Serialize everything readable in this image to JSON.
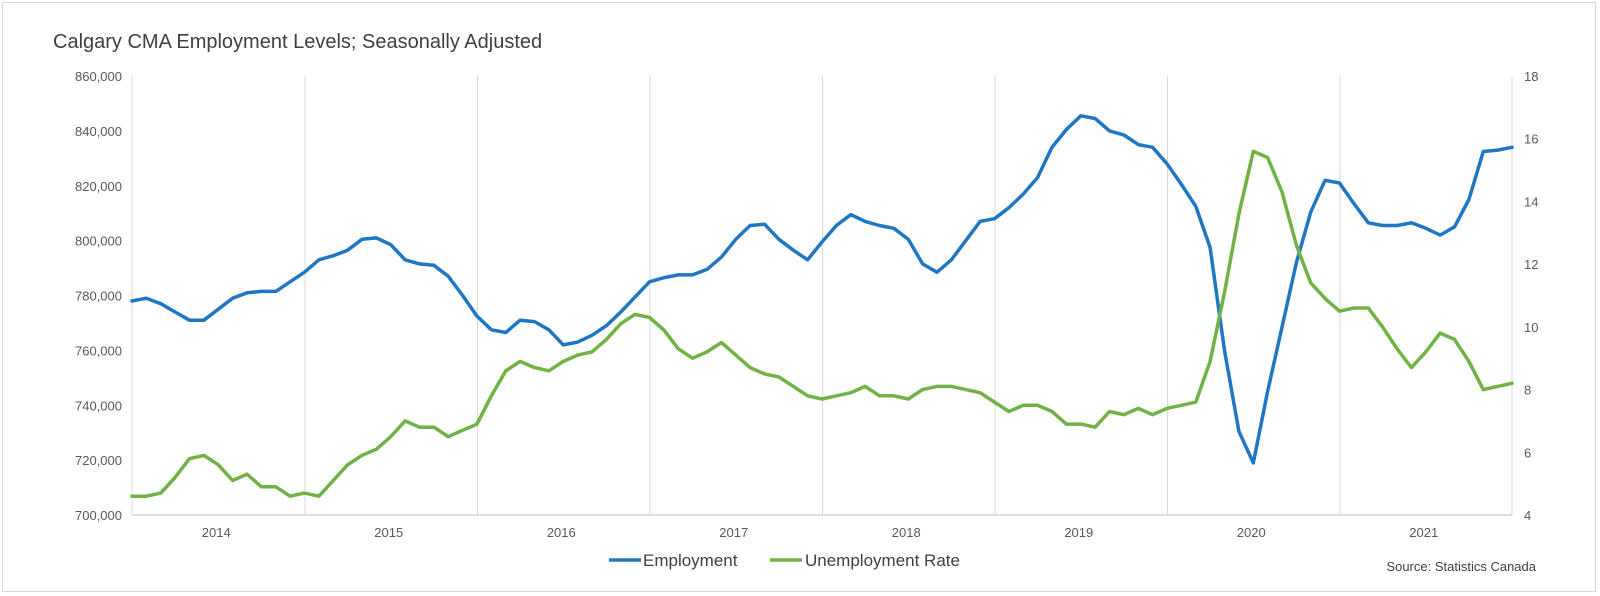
{
  "chart_data": {
    "type": "line",
    "title": "Calgary CMA Employment Levels; Seasonally Adjusted",
    "source": "Source: Statistics Canada",
    "x_labels": [
      "2014",
      "2015",
      "2016",
      "2017",
      "2018",
      "2019",
      "2020",
      "2021"
    ],
    "y_left": {
      "lim": [
        700000,
        860000
      ],
      "ticks": [
        "700,000",
        "720,000",
        "740,000",
        "760,000",
        "780,000",
        "800,000",
        "820,000",
        "840,000",
        "860,000"
      ]
    },
    "y_right": {
      "lim": [
        4,
        18
      ],
      "ticks": [
        "4",
        "6",
        "8",
        "10",
        "12",
        "14",
        "16",
        "18"
      ]
    },
    "grid": "vertical year separators",
    "legend_position": "bottom",
    "series": [
      {
        "name": "Employment",
        "axis": "left",
        "color": "#1f77c4",
        "values": [
          778000,
          779000,
          777000,
          774000,
          771000,
          771000,
          775000,
          779000,
          781000,
          781500,
          781500,
          785000,
          788500,
          793000,
          794500,
          796500,
          800500,
          801000,
          798500,
          793000,
          791500,
          791000,
          787000,
          780000,
          772500,
          767500,
          766500,
          771000,
          770500,
          767500,
          762000,
          763000,
          765500,
          769000,
          774000,
          779500,
          785000,
          786500,
          787500,
          787500,
          789500,
          794000,
          800500,
          805500,
          806000,
          800500,
          796500,
          793000,
          799500,
          805500,
          809500,
          807000,
          805500,
          804500,
          800500,
          791500,
          788500,
          793000,
          800000,
          807000,
          808000,
          812000,
          817000,
          823000,
          834000,
          840500,
          845500,
          844500,
          840000,
          838500,
          835000,
          834000,
          828000,
          820500,
          812500,
          797500,
          760000,
          730500,
          719000,
          745000,
          768500,
          792000,
          810500,
          822000,
          821000,
          813500,
          806500,
          805500,
          805500,
          806500,
          804500,
          802000,
          805000,
          815000,
          832500,
          833000,
          834000
        ]
      },
      {
        "name": "Unemployment Rate",
        "axis": "right",
        "color": "#70b244",
        "values": [
          4.6,
          4.6,
          4.7,
          5.2,
          5.8,
          5.9,
          5.6,
          5.1,
          5.3,
          4.9,
          4.9,
          4.6,
          4.7,
          4.6,
          5.1,
          5.6,
          5.9,
          6.1,
          6.5,
          7.0,
          6.8,
          6.8,
          6.5,
          6.7,
          6.9,
          7.8,
          8.6,
          8.9,
          8.7,
          8.6,
          8.9,
          9.1,
          9.2,
          9.6,
          10.1,
          10.4,
          10.3,
          9.9,
          9.3,
          9.0,
          9.2,
          9.5,
          9.1,
          8.7,
          8.5,
          8.4,
          8.1,
          7.8,
          7.7,
          7.8,
          7.9,
          8.1,
          7.8,
          7.8,
          7.7,
          8.0,
          8.1,
          8.1,
          8.0,
          7.9,
          7.6,
          7.3,
          7.5,
          7.5,
          7.3,
          6.9,
          6.9,
          6.8,
          7.3,
          7.2,
          7.4,
          7.2,
          7.4,
          7.5,
          7.6,
          8.9,
          11.1,
          13.6,
          15.6,
          15.4,
          14.3,
          12.6,
          11.4,
          10.9,
          10.5,
          10.6,
          10.6,
          10.0,
          9.3,
          8.7,
          9.2,
          9.8,
          9.6,
          8.9,
          8.0,
          8.1,
          8.2
        ]
      }
    ]
  }
}
